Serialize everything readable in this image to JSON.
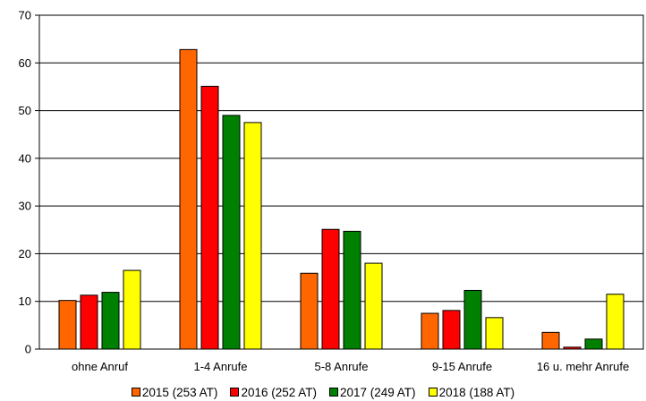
{
  "chart_data": {
    "type": "bar",
    "categories": [
      "ohne Anruf",
      "1-4 Anrufe",
      "5-8 Anrufe",
      "9-15 Anrufe",
      "16 u. mehr Anrufe"
    ],
    "series": [
      {
        "name": "2015 (253 AT)",
        "color": "#ff6600",
        "values": [
          10.2,
          62.8,
          15.9,
          7.5,
          3.5
        ]
      },
      {
        "name": "2016 (252 AT)",
        "color": "#ff0000",
        "values": [
          11.3,
          55.1,
          25.1,
          8.1,
          0.4
        ]
      },
      {
        "name": "2017 (249 AT)",
        "color": "#008000",
        "values": [
          11.9,
          49.0,
          24.7,
          12.3,
          2.1
        ]
      },
      {
        "name": "2018 (188 AT)",
        "color": "#ffff00",
        "values": [
          16.5,
          47.5,
          18.0,
          6.6,
          11.5
        ]
      }
    ],
    "ylim": [
      0,
      70
    ],
    "yticks": [
      0,
      10,
      20,
      30,
      40,
      50,
      60,
      70
    ],
    "grid": true,
    "legend_position": "bottom"
  }
}
